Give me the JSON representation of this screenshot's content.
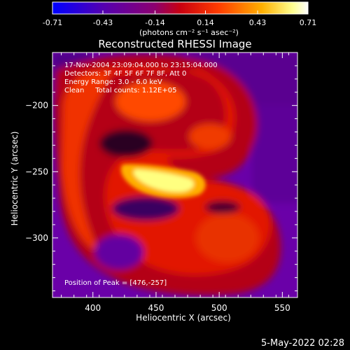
{
  "colorbar": {
    "tick_labels": [
      "-0.71",
      "-0.43",
      "-0.14",
      "0.14",
      "0.43",
      "0.71"
    ],
    "unit_label": "(photons cm⁻² s⁻¹ asec⁻²)",
    "range": [
      -0.71,
      0.71
    ]
  },
  "colors": {
    "background": "#000000",
    "text": "#ffffff",
    "colormap": [
      "#0000ff",
      "#5a00b4",
      "#8c00aa",
      "#c80028",
      "#ff3c00",
      "#ffb400",
      "#ffff96",
      "#ffffff"
    ]
  },
  "chart_data": {
    "type": "heatmap",
    "title": "Reconstructed RHESSI Image",
    "xlabel": "Heliocentric X (arcsec)",
    "ylabel": "Heliocentric Y (arcsec)",
    "xlim": [
      368,
      562
    ],
    "ylim": [
      -345,
      -160
    ],
    "x_ticks": [
      400,
      450,
      500,
      550
    ],
    "y_ticks": [
      -200,
      -250,
      -300
    ],
    "x_tick_labels": [
      "400",
      "450",
      "500",
      "550"
    ],
    "y_tick_labels": [
      "−200",
      "−250",
      "−300"
    ],
    "annotations": [
      "17-Nov-2004 23:09:04.000 to 23:15:04.000",
      "Detectors: 3F 4F 5F 6F 7F 8F, Att 0",
      "Energy Range: 3.0 - 6.0 keV",
      "Clean     Total counts: 1.12E+05"
    ],
    "peak_label": "Position of Peak = [476,-257]",
    "peak_position": [
      476,
      -257
    ],
    "grid": false,
    "legend": "none"
  },
  "footer": {
    "date": "5-May-2022 02:28"
  }
}
